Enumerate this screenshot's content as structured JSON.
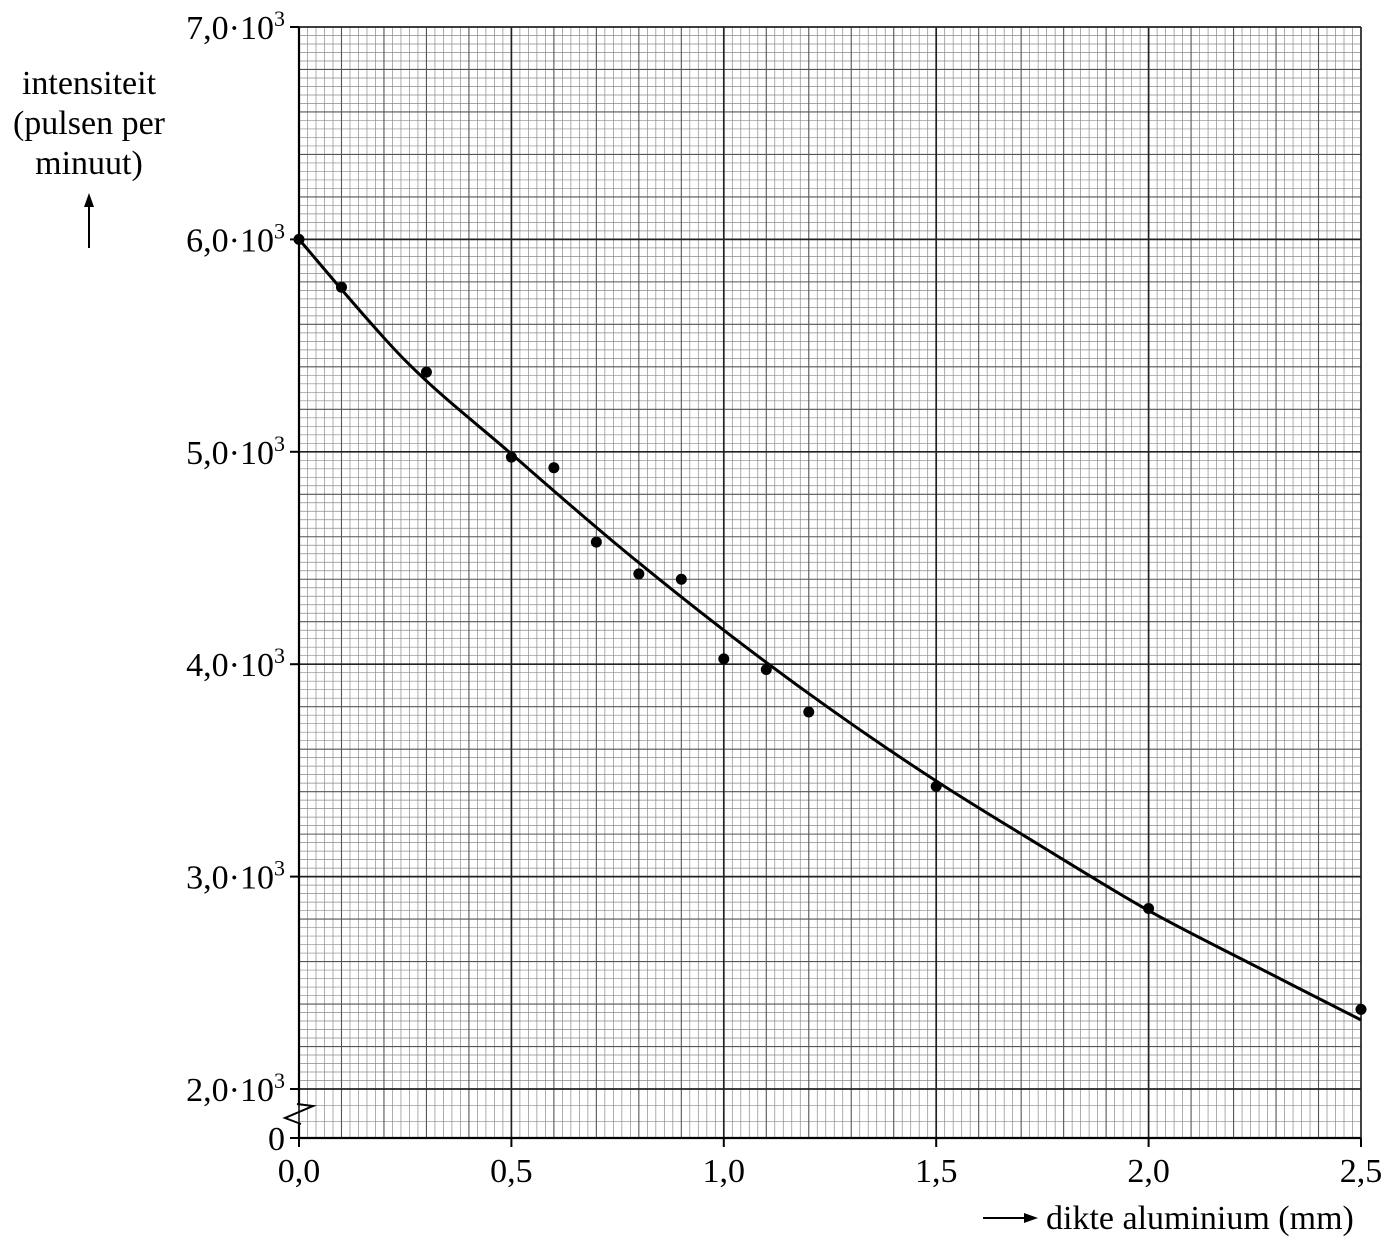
{
  "chart_data": {
    "type": "scatter",
    "ylabel_lines": [
      "intensiteit",
      "(pulsen per",
      "minuut)"
    ],
    "xlabel": "dikte aluminium (mm)",
    "xlim": [
      0,
      2.5
    ],
    "ylim": [
      2000,
      7000
    ],
    "y_axis_break": true,
    "y_zero_label": "0",
    "grid": true,
    "x_ticks": [
      {
        "value": 0.0,
        "label": "0,0"
      },
      {
        "value": 0.5,
        "label": "0,5"
      },
      {
        "value": 1.0,
        "label": "1,0"
      },
      {
        "value": 1.5,
        "label": "1,5"
      },
      {
        "value": 2.0,
        "label": "2,0"
      },
      {
        "value": 2.5,
        "label": "2,5"
      }
    ],
    "y_ticks": [
      {
        "value": 2000,
        "mantissa": "2,0·10",
        "exp": "3"
      },
      {
        "value": 3000,
        "mantissa": "3,0·10",
        "exp": "3"
      },
      {
        "value": 4000,
        "mantissa": "4,0·10",
        "exp": "3"
      },
      {
        "value": 5000,
        "mantissa": "5,0·10",
        "exp": "3"
      },
      {
        "value": 6000,
        "mantissa": "6,0·10",
        "exp": "3"
      },
      {
        "value": 7000,
        "mantissa": "7,0·10",
        "exp": "3"
      }
    ],
    "points": [
      {
        "x": 0.0,
        "y": 6000
      },
      {
        "x": 0.1,
        "y": 5775
      },
      {
        "x": 0.3,
        "y": 5375
      },
      {
        "x": 0.5,
        "y": 4975
      },
      {
        "x": 0.6,
        "y": 4925
      },
      {
        "x": 0.7,
        "y": 4575
      },
      {
        "x": 0.8,
        "y": 4425
      },
      {
        "x": 0.9,
        "y": 4400
      },
      {
        "x": 1.0,
        "y": 4025
      },
      {
        "x": 1.1,
        "y": 3975
      },
      {
        "x": 1.2,
        "y": 3775
      },
      {
        "x": 1.5,
        "y": 3425
      },
      {
        "x": 2.0,
        "y": 2850
      },
      {
        "x": 2.5,
        "y": 2375
      }
    ],
    "fit_curve": {
      "x": [
        0.0,
        0.25,
        0.5,
        0.75,
        1.0,
        1.25,
        1.5,
        1.75,
        2.0,
        2.25,
        2.5
      ],
      "y": [
        6000,
        5430,
        4990,
        4560,
        4160,
        3790,
        3450,
        3140,
        2840,
        2580,
        2325
      ]
    }
  }
}
